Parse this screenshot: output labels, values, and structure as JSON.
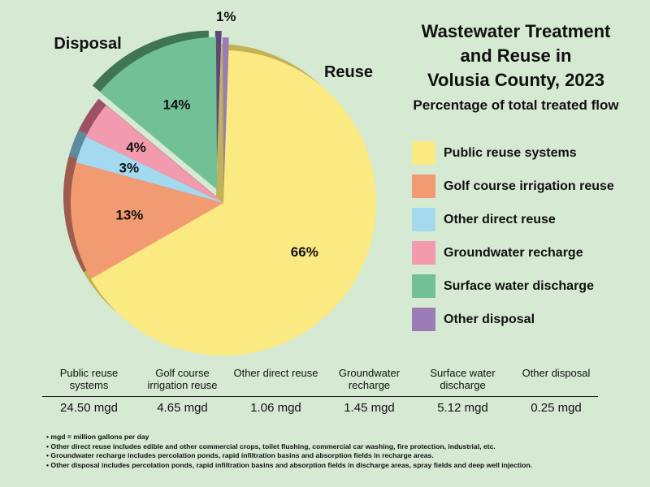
{
  "title": [
    "Wastewater Treatment",
    "and Reuse in",
    "Volusia County, 2023"
  ],
  "subtitle": "Percentage of total treated flow",
  "group_labels": {
    "disposal": "Disposal",
    "reuse": "Reuse"
  },
  "chart_data": {
    "type": "pie",
    "title": "Wastewater Treatment and Reuse in Volusia County, 2023",
    "subtitle": "Percentage of total treated flow",
    "unit": "mgd",
    "slices": [
      {
        "name": "Public reuse systems",
        "value": 24.5,
        "value_label": "24.50 mgd",
        "percent_label": "66%",
        "color": "#fbe981",
        "side": "#c2b155",
        "group": "Reuse"
      },
      {
        "name": "Golf course irrigation reuse",
        "value": 4.65,
        "value_label": "4.65 mgd",
        "percent_label": "13%",
        "color": "#f29b72",
        "side": "#9d5c4d",
        "group": "Reuse"
      },
      {
        "name": "Other direct reuse",
        "value": 1.06,
        "value_label": "1.06 mgd",
        "percent_label": "3%",
        "color": "#a5d9ef",
        "side": "#5c8a9e",
        "group": "Reuse"
      },
      {
        "name": "Groundwater recharge",
        "value": 1.45,
        "value_label": "1.45 mgd",
        "percent_label": "4%",
        "color": "#f29aae",
        "side": "#9c5165",
        "group": "Reuse"
      },
      {
        "name": "Surface water discharge",
        "value": 5.12,
        "value_label": "5.12 mgd",
        "percent_label": "14%",
        "color": "#72c096",
        "side": "#3f7454",
        "group": "Disposal"
      },
      {
        "name": "Other disposal",
        "value": 0.25,
        "value_label": "0.25 mgd",
        "percent_label": "1%",
        "color": "#9c7cb6",
        "side": "#5e4878",
        "group": "Disposal"
      }
    ]
  },
  "table": {
    "headers": [
      "Public reuse systems",
      "Golf course irrigation reuse",
      "Other direct reuse",
      "Groundwater recharge",
      "Surface water discharge",
      "Other disposal"
    ],
    "values": [
      "24.50 mgd",
      "4.65 mgd",
      "1.06 mgd",
      "1.45 mgd",
      "5.12 mgd",
      "0.25 mgd"
    ]
  },
  "notes": [
    "mgd = million gallons per day",
    "Other direct reuse includes edible and other commercial crops, toilet flushing, commercial car washing, fire protection, industrial, etc.",
    "Groundwater recharge includes percolation ponds, rapid infiltration basins and absorption fields in recharge areas.",
    "Other disposal includes percolation ponds, rapid infiltration basins and absorption fields in discharge areas, spray fields and deep well injection."
  ]
}
